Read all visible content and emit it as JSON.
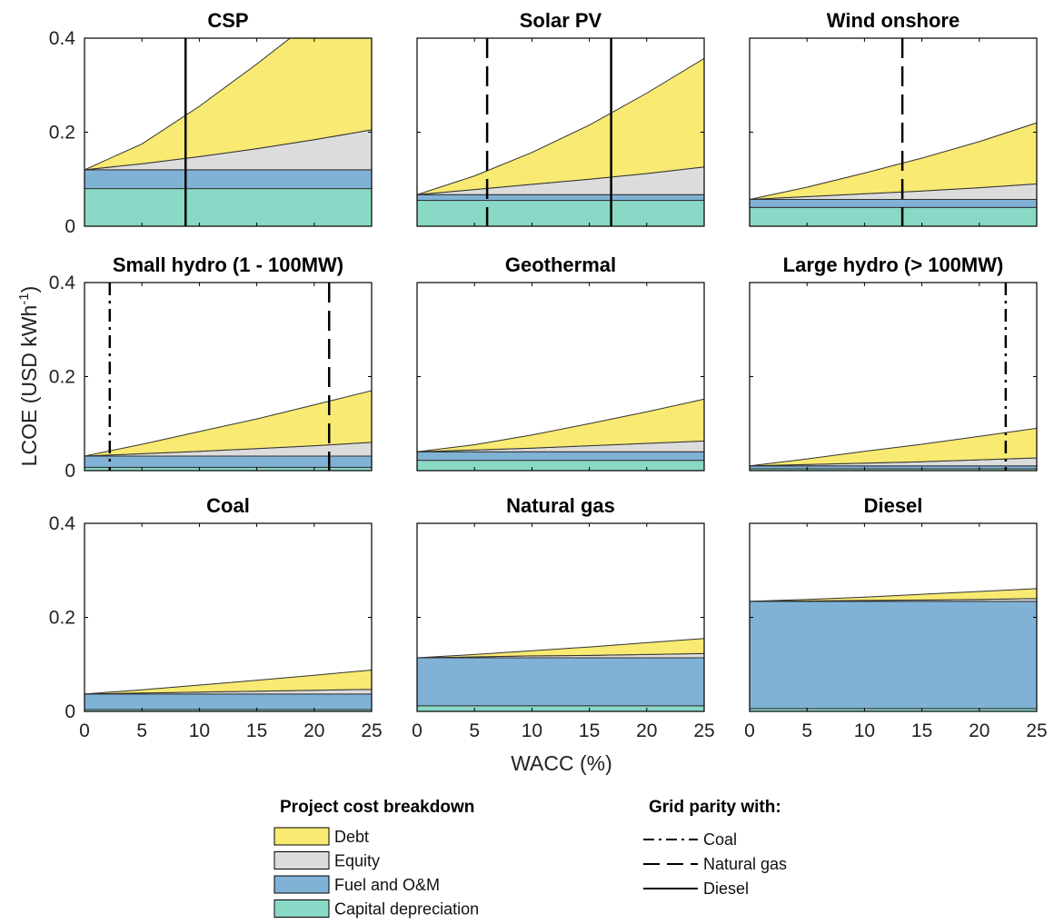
{
  "colors": {
    "debt": "#f8ea72",
    "equity": "#dcdcdc",
    "fuel_om": "#80b2d6",
    "capital_depreciation": "#8ad8c6",
    "stroke": "#333333"
  },
  "axes": {
    "xlabel": "WACC (%)",
    "ylabel_main": "LCOE (USD kWh",
    "ylabel_sup": "-1",
    "ylabel_close": ")",
    "xlim": [
      0,
      25
    ],
    "ylim": [
      0,
      0.4
    ],
    "xticks": [
      "0",
      "5",
      "10",
      "15",
      "20",
      "25"
    ],
    "yticks": [
      "0",
      "0.2",
      "0.4"
    ]
  },
  "legend": {
    "breakdown_title": "Project cost breakdown",
    "breakdown_items": [
      {
        "key": "debt",
        "label": "Debt"
      },
      {
        "key": "equity",
        "label": "Equity"
      },
      {
        "key": "fuel_om",
        "label": "Fuel and O&M"
      },
      {
        "key": "capital_depreciation",
        "label": "Capital depreciation"
      }
    ],
    "parity_title": "Grid parity with:",
    "parity_items": [
      {
        "style": "dashdot",
        "label": "Coal"
      },
      {
        "style": "dashed",
        "label": "Natural gas"
      },
      {
        "style": "solid",
        "label": "Diesel"
      }
    ]
  },
  "chart_data": [
    {
      "type": "area",
      "title": "CSP",
      "x": [
        0,
        5,
        10,
        15,
        20,
        25
      ],
      "capital_depreciation": 0.08,
      "fuel_om": 0.04,
      "equity_top": [
        0.12,
        0.133,
        0.148,
        0.165,
        0.184,
        0.205
      ],
      "debt_top": [
        0.12,
        0.175,
        0.255,
        0.345,
        0.44,
        0.54
      ],
      "parity_lines": [
        {
          "style": "solid",
          "x": 8.8
        }
      ]
    },
    {
      "type": "area",
      "title": "Solar PV",
      "x": [
        0,
        5,
        10,
        15,
        20,
        25
      ],
      "capital_depreciation": 0.055,
      "fuel_om": 0.012,
      "equity_top": [
        0.067,
        0.078,
        0.089,
        0.1,
        0.112,
        0.126
      ],
      "debt_top": [
        0.067,
        0.107,
        0.157,
        0.215,
        0.283,
        0.357
      ],
      "parity_lines": [
        {
          "style": "dashed",
          "x": 6.1
        },
        {
          "style": "solid",
          "x": 16.9
        }
      ]
    },
    {
      "type": "area",
      "title": "Wind onshore",
      "x": [
        0,
        5,
        10,
        15,
        20,
        25
      ],
      "capital_depreciation": 0.04,
      "fuel_om": 0.017,
      "equity_top": [
        0.057,
        0.063,
        0.069,
        0.075,
        0.082,
        0.09
      ],
      "debt_top": [
        0.057,
        0.083,
        0.113,
        0.145,
        0.18,
        0.22
      ],
      "parity_lines": [
        {
          "style": "dashed",
          "x": 13.3
        }
      ]
    },
    {
      "type": "area",
      "title": "Small hydro (1 - 100MW)",
      "x": [
        0,
        5,
        10,
        15,
        20,
        25
      ],
      "capital_depreciation": 0.007,
      "fuel_om": 0.024,
      "equity_top": [
        0.031,
        0.036,
        0.041,
        0.047,
        0.053,
        0.06
      ],
      "debt_top": [
        0.031,
        0.056,
        0.083,
        0.11,
        0.14,
        0.17
      ],
      "parity_lines": [
        {
          "style": "dashdot",
          "x": 2.2
        },
        {
          "style": "dashed",
          "x": 21.3
        }
      ]
    },
    {
      "type": "area",
      "title": "Geothermal",
      "x": [
        0,
        5,
        10,
        15,
        20,
        25
      ],
      "capital_depreciation": 0.022,
      "fuel_om": 0.018,
      "equity_top": [
        0.04,
        0.044,
        0.048,
        0.053,
        0.058,
        0.063
      ],
      "debt_top": [
        0.04,
        0.055,
        0.076,
        0.1,
        0.125,
        0.152
      ],
      "parity_lines": []
    },
    {
      "type": "area",
      "title": "Large hydro (> 100MW)",
      "x": [
        0,
        5,
        10,
        15,
        20,
        25
      ],
      "capital_depreciation": 0.004,
      "fuel_om": 0.006,
      "equity_top": [
        0.01,
        0.013,
        0.016,
        0.019,
        0.023,
        0.027
      ],
      "debt_top": [
        0.01,
        0.025,
        0.041,
        0.056,
        0.073,
        0.09
      ],
      "parity_lines": [
        {
          "style": "dashdot",
          "x": 22.3
        }
      ]
    },
    {
      "type": "area",
      "title": "Coal",
      "x": [
        0,
        5,
        10,
        15,
        20,
        25
      ],
      "capital_depreciation": 0.004,
      "fuel_om": 0.033,
      "equity_top": [
        0.037,
        0.039,
        0.041,
        0.043,
        0.045,
        0.047
      ],
      "debt_top": [
        0.037,
        0.046,
        0.056,
        0.066,
        0.077,
        0.088
      ],
      "parity_lines": []
    },
    {
      "type": "area",
      "title": "Natural gas",
      "x": [
        0,
        5,
        10,
        15,
        20,
        25
      ],
      "capital_depreciation": 0.012,
      "fuel_om": 0.102,
      "equity_top": [
        0.114,
        0.116,
        0.118,
        0.119,
        0.121,
        0.123
      ],
      "debt_top": [
        0.114,
        0.121,
        0.129,
        0.137,
        0.146,
        0.155
      ],
      "parity_lines": []
    },
    {
      "type": "area",
      "title": "Diesel",
      "x": [
        0,
        5,
        10,
        15,
        20,
        25
      ],
      "capital_depreciation": 0.006,
      "fuel_om": 0.228,
      "equity_top": [
        0.234,
        0.235,
        0.236,
        0.237,
        0.238,
        0.24
      ],
      "debt_top": [
        0.234,
        0.238,
        0.243,
        0.249,
        0.255,
        0.261
      ],
      "parity_lines": []
    }
  ]
}
